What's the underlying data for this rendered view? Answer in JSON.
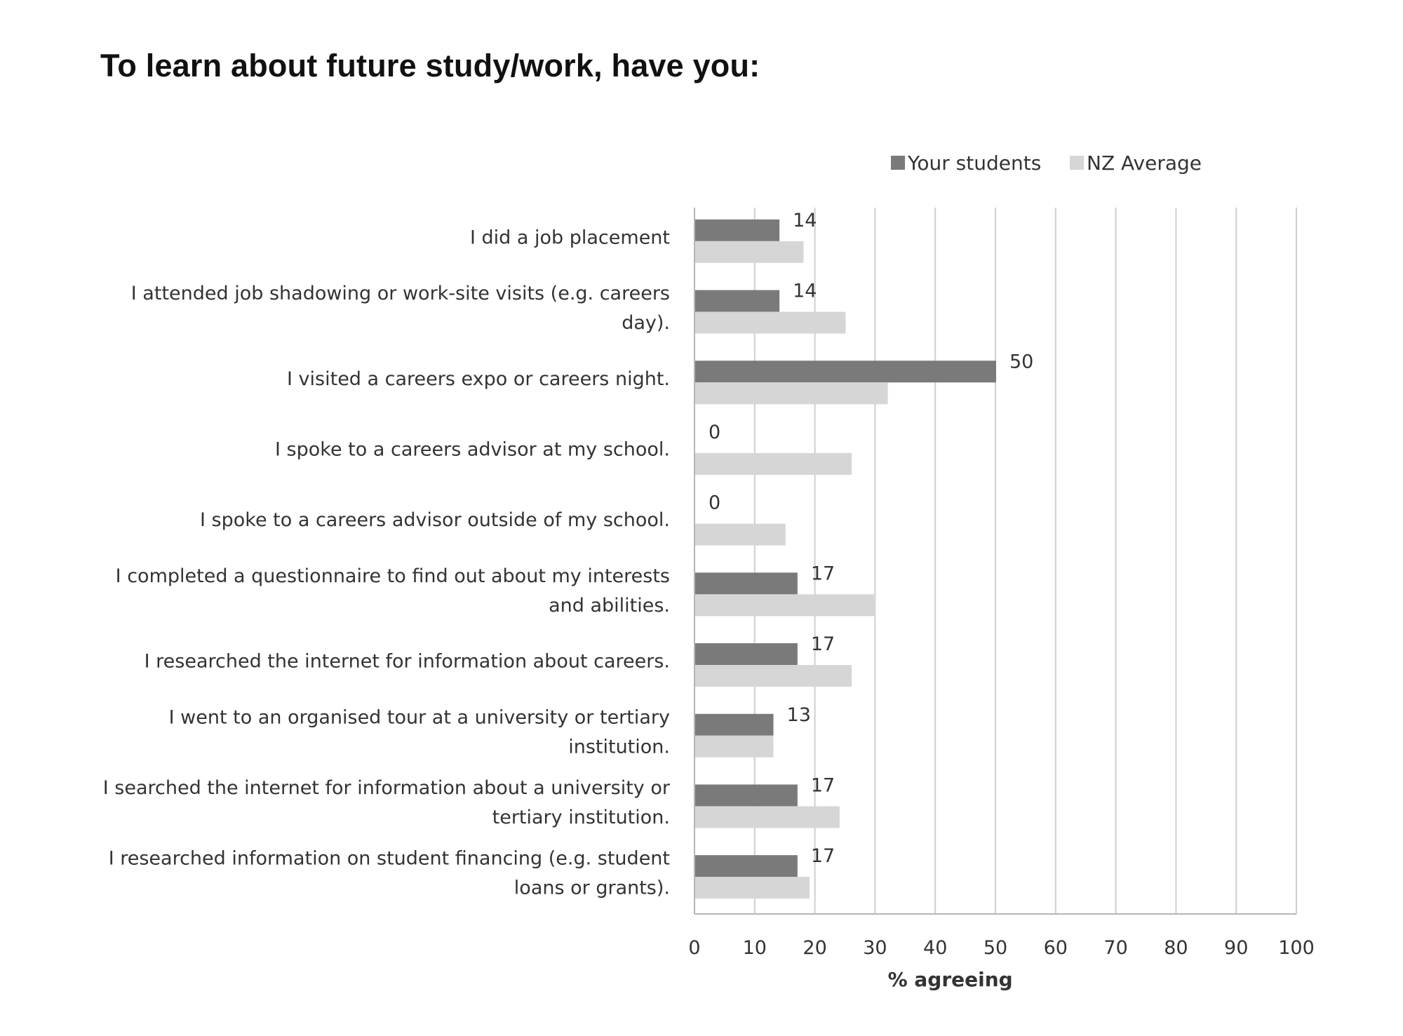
{
  "page": {
    "title": "To learn about future study/work, have you:"
  },
  "chart_data": {
    "type": "bar",
    "orientation": "horizontal",
    "categories": [
      [
        "I did a job placement"
      ],
      [
        "I attended job shadowing or work-site visits (e.g. careers",
        "day)."
      ],
      [
        "I visited a careers expo or careers night."
      ],
      [
        "I spoke to a careers advisor at my school."
      ],
      [
        "I spoke to a careers advisor outside of my school."
      ],
      [
        "I completed a questionnaire to find out about my interests",
        "and abilities."
      ],
      [
        "I researched the internet for information about careers."
      ],
      [
        "I went to an organised tour at a university or tertiary",
        "institution."
      ],
      [
        "I searched the internet for information about a university or",
        "tertiary institution."
      ],
      [
        "I researched information on student financing (e.g. student",
        "loans or grants)."
      ]
    ],
    "series": [
      {
        "name": "Your students",
        "color": "#7a7a7a",
        "values": [
          14,
          14,
          50,
          0,
          0,
          17,
          17,
          13,
          17,
          17
        ],
        "show_labels": true
      },
      {
        "name": "NZ Average",
        "color": "#d6d6d6",
        "values": [
          18,
          25,
          32,
          26,
          15,
          30,
          26,
          13,
          24,
          19
        ],
        "show_labels": false
      }
    ],
    "xlabel": "% agreeing",
    "ylabel": "",
    "xlim": [
      0,
      100
    ],
    "ticks": [
      0,
      10,
      20,
      30,
      40,
      50,
      60,
      70,
      80,
      90,
      100
    ],
    "grid": "vertical",
    "legend_position": "top-right"
  }
}
